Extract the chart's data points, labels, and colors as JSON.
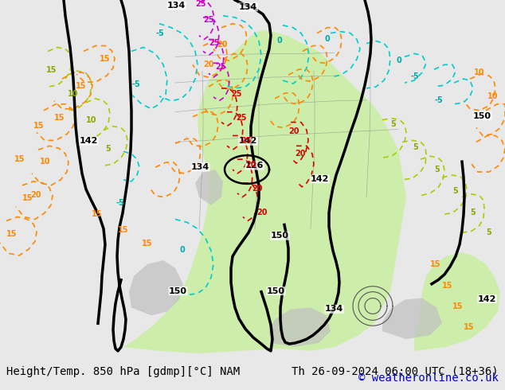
{
  "title_left": "Height/Temp. 850 hPa [gdmp][°C] NAM",
  "title_right": "Th 26-09-2024 06:00 UTC (18+36)",
  "copyright": "© weatheronline.co.uk",
  "bg_color": "#e8e8e8",
  "map_bg_color": "#f0f0f0",
  "green_fill_color": "#c8f0a0",
  "gray_fill_color": "#c0c0c0",
  "bottom_bar_color": "#e0e0e0",
  "title_fontsize": 10,
  "copyright_color": "#0000cc",
  "title_color": "#000000",
  "figsize": [
    6.34,
    4.9
  ],
  "dpi": 100
}
